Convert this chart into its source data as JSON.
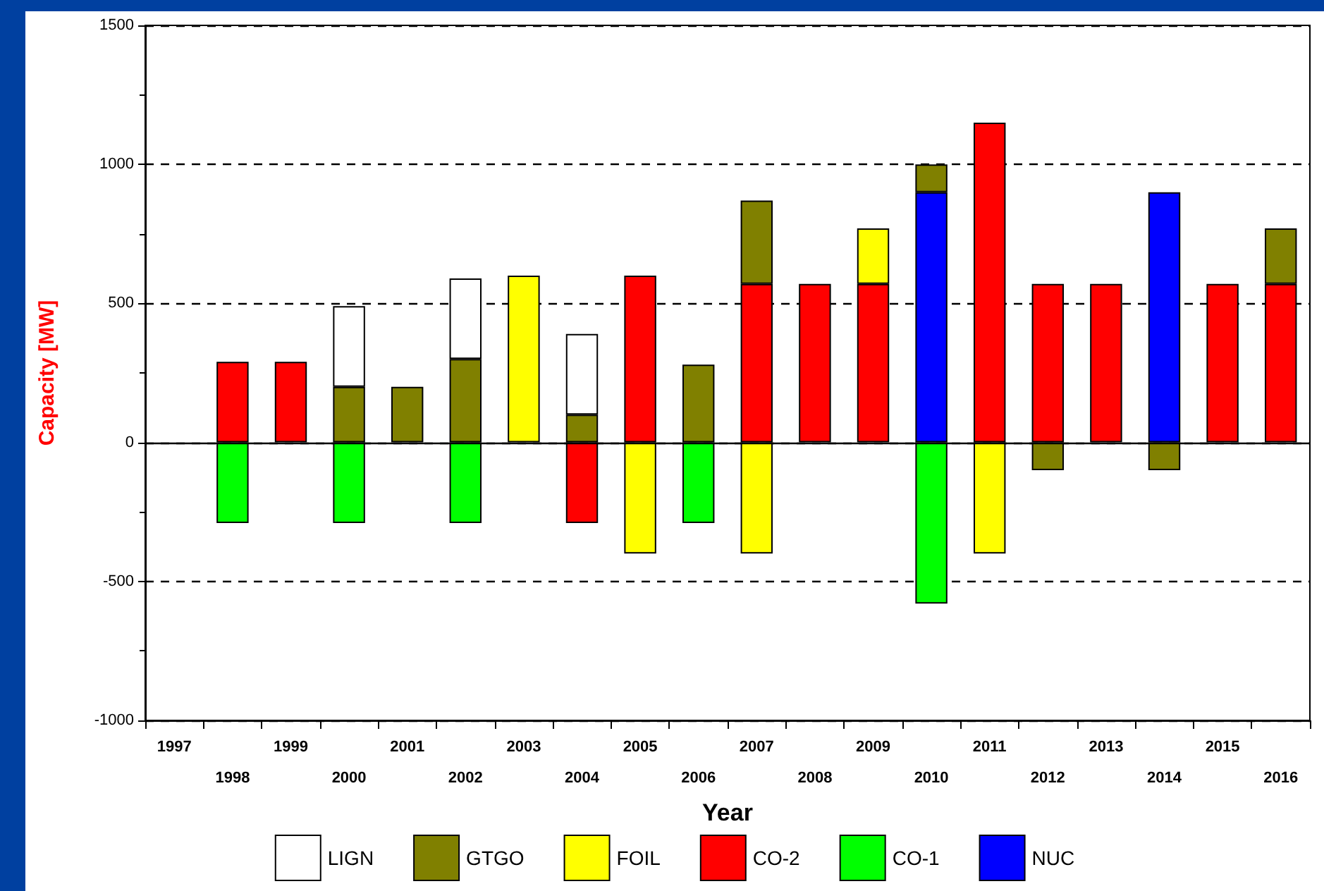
{
  "chart_data": {
    "type": "bar",
    "stacked": true,
    "xlabel": "Year",
    "ylabel": "Capacity [MW]",
    "categories": [
      "1997",
      "1998",
      "1999",
      "2000",
      "2001",
      "2002",
      "2003",
      "2004",
      "2005",
      "2006",
      "2007",
      "2008",
      "2009",
      "2010",
      "2011",
      "2012",
      "2013",
      "2014",
      "2015",
      "2016"
    ],
    "series": [
      {
        "name": "NUC",
        "color": "#0000ff",
        "values": [
          null,
          null,
          null,
          null,
          null,
          null,
          null,
          null,
          null,
          null,
          null,
          null,
          null,
          900,
          null,
          null,
          null,
          900,
          null,
          null
        ]
      },
      {
        "name": "CO-1",
        "color": "#00ff00",
        "values": [
          null,
          -290,
          null,
          -290,
          null,
          -290,
          null,
          null,
          null,
          -290,
          null,
          null,
          null,
          -580,
          null,
          null,
          null,
          null,
          null,
          null
        ]
      },
      {
        "name": "CO-2",
        "color": "#ff0000",
        "values": [
          null,
          290,
          290,
          null,
          null,
          null,
          null,
          -290,
          600,
          null,
          570,
          570,
          570,
          null,
          1150,
          570,
          570,
          null,
          570,
          570
        ]
      },
      {
        "name": "FOIL",
        "color": "#ffff00",
        "values": [
          null,
          null,
          null,
          null,
          null,
          null,
          600,
          null,
          -400,
          null,
          -400,
          null,
          200,
          null,
          -400,
          null,
          null,
          null,
          null,
          null
        ]
      },
      {
        "name": "GTGO",
        "color": "#808000",
        "values": [
          null,
          null,
          null,
          200,
          200,
          300,
          null,
          100,
          null,
          280,
          300,
          null,
          null,
          100,
          null,
          -100,
          null,
          -100,
          null,
          200
        ]
      },
      {
        "name": "LIGN",
        "color": "#ffffff",
        "values": [
          null,
          null,
          null,
          290,
          null,
          290,
          null,
          290,
          null,
          null,
          null,
          null,
          null,
          null,
          null,
          null,
          null,
          null,
          null,
          null
        ]
      }
    ],
    "ylim": [
      -1000,
      1500
    ],
    "yticks": [
      -1000,
      -500,
      0,
      500,
      1000,
      1500
    ],
    "grid": "y",
    "legend": "bottom"
  }
}
